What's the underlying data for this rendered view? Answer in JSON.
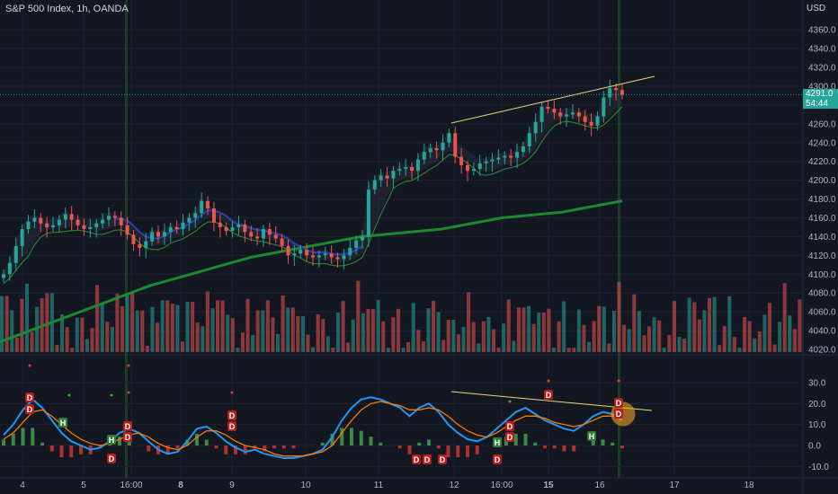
{
  "header": {
    "title": "S&P 500 Index, 1h, OANDA",
    "currency": "USD"
  },
  "last_price": {
    "value": "4291.0",
    "countdown": "54:44"
  },
  "chart_data": [
    {
      "type": "line",
      "name": "price-panel",
      "ylim": [
        4015,
        4380
      ],
      "y_ticks": [
        4020,
        4040,
        4060,
        4080,
        4100,
        4120,
        4140,
        4160,
        4180,
        4200,
        4220,
        4240,
        4260,
        4280,
        4300,
        4320,
        4340,
        4360
      ],
      "x_ticks": [
        "4",
        "5",
        "16:00",
        "8",
        "9",
        "10",
        "11",
        "12",
        "16:00",
        "15",
        "16",
        "17",
        "18"
      ],
      "x_ticks_bold": [
        "8",
        "15"
      ],
      "close_series": [
        4100,
        4112,
        4130,
        4148,
        4156,
        4160,
        4154,
        4150,
        4152,
        4158,
        4164,
        4158,
        4152,
        4148,
        4150,
        4154,
        4158,
        4162,
        4160,
        4152,
        4142,
        4132,
        4128,
        4135,
        4145,
        4140,
        4145,
        4150,
        4148,
        4155,
        4160,
        4165,
        4178,
        4170,
        4155,
        4150,
        4146,
        4150,
        4153,
        4145,
        4140,
        4138,
        4148,
        4142,
        4138,
        4130,
        4120,
        4122,
        4126,
        4120,
        4118,
        4120,
        4122,
        4118,
        4116,
        4120,
        4128,
        4136,
        4140,
        4190,
        4200,
        4205,
        4202,
        4210,
        4212,
        4214,
        4210,
        4222,
        4230,
        4234,
        4232,
        4240,
        4250,
        4225,
        4216,
        4210,
        4212,
        4218,
        4220,
        4222,
        4224,
        4226,
        4224,
        4230,
        4236,
        4250,
        4262,
        4278,
        4276,
        4272,
        4268,
        4270,
        4272,
        4268,
        4262,
        4258,
        4268,
        4288,
        4298,
        4296,
        4291
      ],
      "ma_slow": [
        4028,
        4032,
        4036,
        4040,
        4044,
        4048,
        4052,
        4056,
        4060,
        4064,
        4068,
        4072,
        4076,
        4080,
        4084,
        4088,
        4091,
        4094,
        4097,
        4100,
        4103,
        4106,
        4109,
        4112,
        4115,
        4118,
        4120,
        4122,
        4124,
        4126,
        4128,
        4130,
        4132,
        4134,
        4136,
        4138,
        4140,
        4141,
        4142,
        4143,
        4144,
        4145,
        4146,
        4147,
        4148,
        4150,
        4152,
        4154,
        4156,
        4158,
        4160,
        4161,
        4162,
        4163,
        4164,
        4165,
        4166,
        4168,
        4170,
        4172,
        4174,
        4176,
        4178
      ],
      "volume_ylim": [
        0,
        100
      ],
      "annotations": [
        "resistance trendline"
      ]
    },
    {
      "type": "line",
      "name": "oscillator-panel",
      "ylim": [
        -12,
        30
      ],
      "y_ticks": [
        30.0,
        20.0,
        10.0,
        0.0,
        -10.0
      ],
      "series": [
        {
          "name": "",
          "color": "#2196f3",
          "values": [
            5,
            10,
            17,
            22,
            18,
            12,
            6,
            2,
            0,
            -2,
            -1,
            2,
            6,
            8,
            6,
            2,
            -2,
            -4,
            -3,
            2,
            8,
            9,
            6,
            2,
            -1,
            -3,
            -2,
            -4,
            -5,
            -6,
            -6,
            -5,
            -4,
            -2,
            4,
            12,
            18,
            22,
            23,
            22,
            20,
            18,
            14,
            18,
            20,
            16,
            10,
            6,
            3,
            2,
            4,
            8,
            12,
            16,
            18,
            15,
            12,
            10,
            8,
            7,
            10,
            14,
            16,
            15,
            12
          ]
        },
        {
          "name": "",
          "color": "#f57c00",
          "values": [
            3,
            6,
            11,
            16,
            17,
            14,
            10,
            6,
            3,
            1,
            0,
            1,
            3,
            5,
            6,
            4,
            1,
            -1,
            -2,
            0,
            4,
            7,
            7,
            5,
            2,
            0,
            -1,
            -2,
            -4,
            -5,
            -5,
            -5,
            -4,
            -3,
            0,
            6,
            12,
            17,
            20,
            21,
            20,
            19,
            17,
            17,
            18,
            17,
            14,
            10,
            7,
            5,
            4,
            6,
            9,
            12,
            14,
            14,
            13,
            11,
            10,
            9,
            10,
            12,
            14,
            14,
            13
          ]
        }
      ],
      "markers": [
        "D",
        "D",
        "H",
        "H",
        "D",
        "D",
        "D",
        "D",
        "D",
        "D",
        "D",
        "D",
        "D",
        "H",
        "D",
        "D",
        "H",
        "D",
        "D"
      ]
    }
  ],
  "colors": {
    "background": "#131722",
    "up": "#26a69a",
    "down": "#ef5350",
    "ma_green": "#1b8a2f",
    "ma_blue": "#2a3fb5",
    "trendline": "#e8d77a"
  }
}
